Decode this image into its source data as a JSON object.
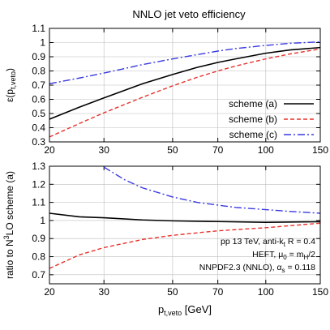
{
  "chart_data": [
    {
      "type": "line",
      "title": "NNLO jet veto efficiency",
      "ylabel": {
        "main": "ε(p",
        "sub": "t,veto",
        "tail": ")"
      },
      "x_scale": "log",
      "xlim": [
        20,
        150
      ],
      "ylim": [
        0.3,
        1.1
      ],
      "x_ticks": [
        "20",
        "30",
        "50",
        "70",
        "100",
        "150"
      ],
      "y_ticks": [
        "0.3",
        "0.4",
        "0.5",
        "0.6",
        "0.7",
        "0.8",
        "0.9",
        "1",
        "1.1"
      ],
      "grid": true,
      "legend_position": "lower-right",
      "series": [
        {
          "name": "scheme (a)",
          "color": "#000000",
          "dash": "solid",
          "x": [
            20,
            25,
            30,
            40,
            50,
            60,
            70,
            80,
            100,
            120,
            150
          ],
          "y": [
            0.46,
            0.545,
            0.61,
            0.71,
            0.775,
            0.825,
            0.86,
            0.885,
            0.925,
            0.948,
            0.965
          ]
        },
        {
          "name": "scheme (b)",
          "color": "#e8322c",
          "dash": "dashed",
          "x": [
            20,
            25,
            30,
            40,
            50,
            60,
            70,
            80,
            100,
            120,
            150
          ],
          "y": [
            0.335,
            0.43,
            0.505,
            0.615,
            0.695,
            0.755,
            0.8,
            0.835,
            0.885,
            0.92,
            0.955
          ]
        },
        {
          "name": "scheme (c)",
          "color": "#3a3ae0",
          "dash": "dashdot",
          "x": [
            20,
            25,
            30,
            40,
            50,
            60,
            70,
            80,
            100,
            120,
            150
          ],
          "y": [
            0.71,
            0.75,
            0.785,
            0.845,
            0.885,
            0.915,
            0.94,
            0.958,
            0.98,
            0.995,
            1.005
          ]
        }
      ]
    },
    {
      "type": "line",
      "xlabel": {
        "main": "p",
        "sub": "t,veto",
        "tail": " [GeV]"
      },
      "ylabel": {
        "main": "ratio to N",
        "sup": "3",
        "tail": "LO scheme (a)"
      },
      "x_scale": "log",
      "xlim": [
        20,
        150
      ],
      "ylim": [
        0.65,
        1.3
      ],
      "x_ticks": [
        "20",
        "30",
        "50",
        "70",
        "100",
        "150"
      ],
      "y_ticks": [
        "0.7",
        "0.8",
        "0.9",
        "1",
        "1.1",
        "1.2",
        "1.3"
      ],
      "grid": true,
      "series": [
        {
          "color": "#000000",
          "dash": "solid",
          "x": [
            20,
            25,
            30,
            40,
            50,
            70,
            100,
            150
          ],
          "y": [
            1.04,
            1.02,
            1.015,
            1.003,
            0.998,
            0.994,
            0.99,
            0.993
          ]
        },
        {
          "color": "#e8322c",
          "dash": "dashed",
          "x": [
            20,
            25,
            30,
            40,
            50,
            70,
            100,
            150
          ],
          "y": [
            0.735,
            0.81,
            0.85,
            0.895,
            0.918,
            0.943,
            0.96,
            0.985
          ]
        },
        {
          "color": "#3a3ae0",
          "dash": "dashdot",
          "x": [
            30,
            35,
            40,
            50,
            60,
            70,
            80,
            100,
            120,
            150
          ],
          "y": [
            1.295,
            1.225,
            1.18,
            1.13,
            1.1,
            1.085,
            1.072,
            1.06,
            1.05,
            1.04
          ]
        }
      ],
      "annotations": [
        {
          "parts": [
            {
              "t": "pp 13 TeV, anti-k"
            },
            {
              "t": "t",
              "sub": true
            },
            {
              "t": " R = 0.4"
            }
          ]
        },
        {
          "parts": [
            {
              "t": "HEFT, μ"
            },
            {
              "t": "0",
              "sub": true
            },
            {
              "t": " = m"
            },
            {
              "t": "H",
              "sub": true
            },
            {
              "t": "/2"
            }
          ]
        },
        {
          "parts": [
            {
              "t": "NNPDF2.3 (NNLO), α"
            },
            {
              "t": "s",
              "sub": true
            },
            {
              "t": " = 0.118"
            }
          ]
        }
      ]
    }
  ]
}
